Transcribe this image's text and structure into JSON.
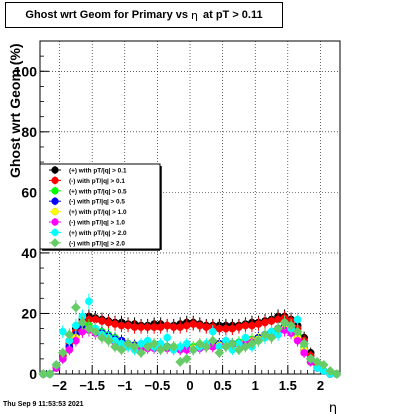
{
  "title": {
    "prefix": "Ghost wrt Geom for Primary vs",
    "symbol": "η",
    "suffix": "at pT > 0.11"
  },
  "footer": "Thu Sep  9 11:53:53 2021",
  "chart_data": {
    "type": "scatter",
    "ylabel": "Ghost wrt Geom (%)",
    "xlabel": "η",
    "xlim": [
      -2.3,
      2.3
    ],
    "ylim": [
      0,
      110
    ],
    "x_ticks": [
      -2,
      -1.5,
      -1,
      -0.5,
      0,
      0.5,
      1,
      1.5,
      2
    ],
    "x_tick_labels": [
      "−2",
      "−1.5",
      "−1",
      "−0.5",
      "0",
      "0.5",
      "1",
      "1.5",
      "2"
    ],
    "y_ticks": [
      0,
      20,
      40,
      60,
      80,
      100
    ],
    "y_tick_labels": [
      "0",
      "20",
      "40",
      "60",
      "80",
      "100"
    ],
    "grid": true,
    "legend_position": "middle-left",
    "x": [
      -2.25,
      -2.15,
      -2.05,
      -1.95,
      -1.85,
      -1.75,
      -1.65,
      -1.55,
      -1.45,
      -1.35,
      -1.25,
      -1.15,
      -1.05,
      -0.95,
      -0.85,
      -0.75,
      -0.65,
      -0.55,
      -0.45,
      -0.35,
      -0.25,
      -0.15,
      -0.05,
      0.05,
      0.15,
      0.25,
      0.35,
      0.45,
      0.55,
      0.65,
      0.75,
      0.85,
      0.95,
      1.05,
      1.15,
      1.25,
      1.35,
      1.45,
      1.55,
      1.65,
      1.75,
      1.85,
      1.95,
      2.05,
      2.15,
      2.25
    ],
    "series": [
      {
        "name": "(+) with pT/|q| > 0.1",
        "color": "#000000",
        "marker": "circle",
        "values": [
          0,
          0,
          2,
          6,
          11,
          15,
          18,
          19,
          18.5,
          18,
          17.5,
          17,
          17,
          16.5,
          16.5,
          16,
          16,
          16.5,
          16.5,
          16,
          16,
          16.5,
          17,
          17,
          16.5,
          16,
          16,
          16,
          16,
          16,
          16,
          16.5,
          17,
          17,
          17.5,
          18,
          19,
          19,
          18,
          16,
          12,
          7,
          3,
          1,
          0,
          0
        ]
      },
      {
        "name": "(-) with pT/|q| > 0.1",
        "color": "#ff0000",
        "marker": "circle",
        "values": [
          0,
          0,
          2,
          6,
          10,
          14,
          17,
          18,
          18,
          17.5,
          17,
          16.5,
          16,
          16,
          15.5,
          15.5,
          15.5,
          15.5,
          15.5,
          16,
          15.5,
          15.5,
          16,
          16.5,
          16,
          15.5,
          15.5,
          15,
          15,
          15,
          15.5,
          16,
          16,
          16.5,
          17,
          17.5,
          18,
          18.5,
          17.5,
          15,
          11,
          6,
          3,
          1,
          0,
          0
        ]
      },
      {
        "name": "(+) with pT/|q| > 0.5",
        "color": "#00ff00",
        "marker": "circle",
        "values": [
          0,
          0,
          2,
          5,
          9,
          13,
          16,
          16,
          15,
          14,
          13,
          12,
          11,
          10,
          9.5,
          9,
          9,
          9.5,
          9.5,
          9,
          9,
          8.5,
          8.5,
          9,
          9,
          9.5,
          10,
          10,
          10,
          10,
          10.5,
          11,
          11.5,
          12,
          13,
          14,
          15,
          16,
          15,
          13,
          9,
          5,
          2,
          1,
          0,
          0
        ]
      },
      {
        "name": "(-) with pT/|q| > 0.5",
        "color": "#0000ff",
        "marker": "circle",
        "values": [
          0,
          0,
          2,
          5,
          9,
          13,
          15,
          15,
          14.5,
          13.5,
          12.5,
          11.5,
          11,
          10,
          9.5,
          9,
          9,
          9,
          9,
          9,
          8.5,
          8.5,
          8.5,
          8.5,
          9,
          9,
          9.5,
          10,
          10,
          10,
          10,
          10.5,
          11,
          12,
          13,
          14,
          15,
          15.5,
          14.5,
          12,
          8,
          4,
          2,
          1,
          0,
          0
        ]
      },
      {
        "name": "(+) with pT/|q| > 1.0",
        "color": "#ffff00",
        "marker": "circle",
        "values": [
          0,
          0,
          2,
          5,
          8,
          12,
          14,
          15,
          14,
          13,
          12,
          11,
          10,
          9.5,
          9,
          8.5,
          8.5,
          9,
          9,
          8.5,
          8,
          8,
          8,
          8.5,
          8.5,
          9,
          9,
          9.5,
          9.5,
          9.5,
          10,
          10.5,
          11,
          11.5,
          12,
          13,
          14,
          15,
          14,
          12,
          8,
          4,
          2,
          1,
          0,
          0
        ]
      },
      {
        "name": "(-) with pT/|q| > 1.0",
        "color": "#ff00ff",
        "marker": "circle",
        "values": [
          0,
          0,
          2,
          5,
          8,
          11,
          14,
          14.5,
          13.5,
          12.5,
          11.5,
          10.5,
          10,
          9,
          8.5,
          8.5,
          8.5,
          8.5,
          8.5,
          8.5,
          8,
          8,
          8,
          8,
          8.5,
          9,
          9,
          9,
          9.5,
          9.5,
          10,
          10,
          10.5,
          11,
          12,
          13,
          14,
          14.5,
          13.5,
          11,
          7,
          4,
          2,
          1,
          0,
          0
        ]
      },
      {
        "name": "(+) with pT/|q| > 2.0",
        "color": "#00ffff",
        "marker": "circle",
        "values": [
          0,
          0,
          3,
          14,
          11,
          16,
          19,
          24,
          15,
          13,
          12,
          11,
          10,
          9,
          8,
          10,
          11,
          9,
          10,
          12,
          8,
          9,
          10,
          8,
          9,
          10,
          14,
          9,
          11,
          8,
          10,
          12,
          9,
          11,
          12,
          14,
          13,
          17,
          15,
          18,
          10,
          5,
          2,
          1,
          0,
          0
        ]
      },
      {
        "name": "(-) with pT/|q| > 2.0",
        "color": "#66cc66",
        "marker": "diamond",
        "values": [
          0,
          0,
          3,
          7,
          13,
          22,
          17,
          15,
          14,
          12,
          11,
          9,
          8,
          10,
          9,
          7,
          9,
          10,
          8,
          9,
          9,
          4,
          5,
          8,
          10,
          9,
          11,
          7,
          9,
          10,
          8,
          9,
          10,
          11,
          13,
          12,
          15,
          17,
          16,
          14,
          10,
          5,
          4,
          3,
          1,
          0
        ]
      }
    ]
  }
}
